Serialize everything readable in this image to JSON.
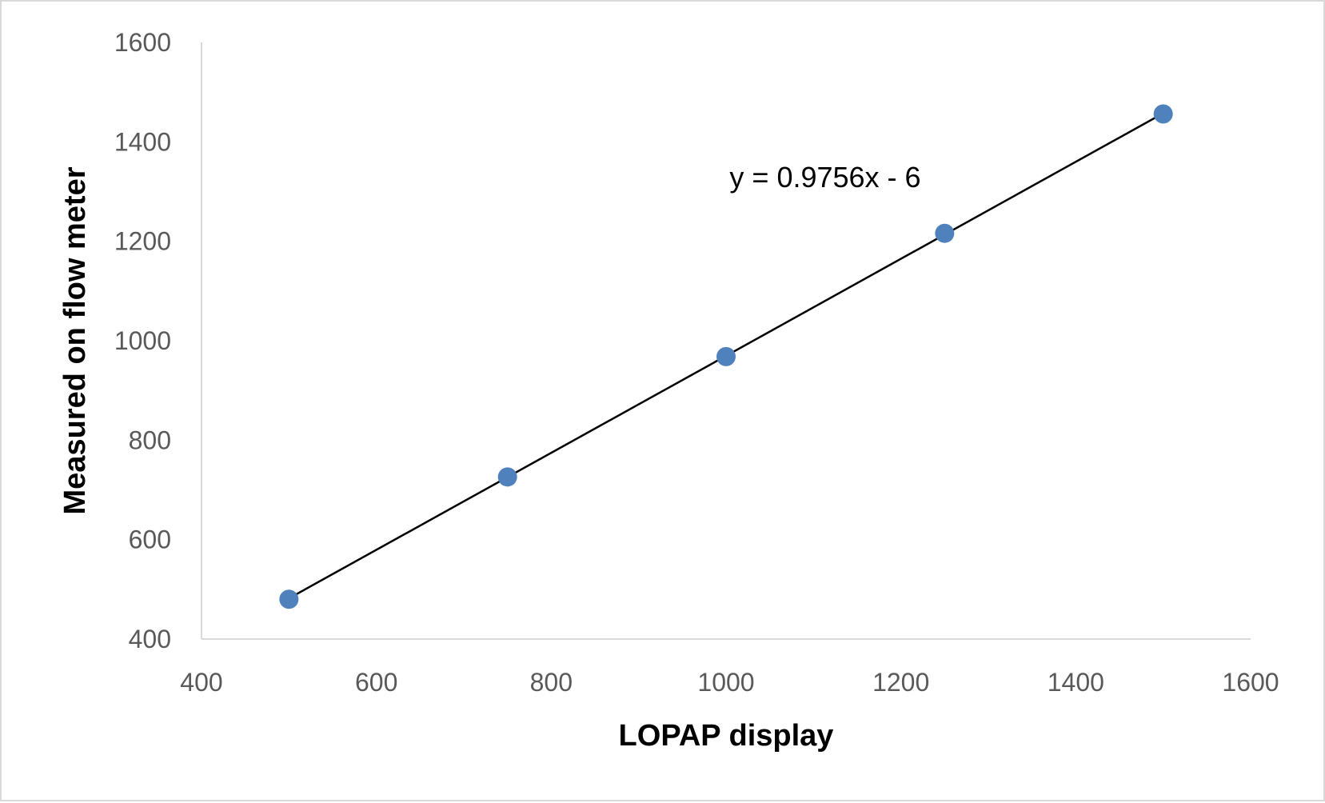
{
  "chart_data": {
    "type": "scatter",
    "xlabel": "LOPAP display",
    "ylabel": "Measured on flow meter",
    "xlim": [
      400,
      1600
    ],
    "ylim": [
      400,
      1600
    ],
    "x_ticks": [
      400,
      600,
      800,
      1000,
      1200,
      1400,
      1600
    ],
    "y_ticks": [
      400,
      600,
      800,
      1000,
      1200,
      1400,
      1600
    ],
    "x_tick_labels": [
      "400",
      "600",
      "800",
      "1000",
      "1200",
      "1400",
      "1600"
    ],
    "y_tick_labels": [
      "400",
      "600",
      "800",
      "1000",
      "1200",
      "1400",
      "1600"
    ],
    "grid": false,
    "legend": "none",
    "series": [
      {
        "x": [
          500,
          750,
          1000,
          1250,
          1500
        ],
        "y": [
          480,
          726,
          968,
          1216,
          1456
        ],
        "color": "#4f81bd"
      }
    ],
    "trendline": {
      "slope": 0.9756,
      "intercept": -6,
      "x_range": [
        500,
        1500
      ],
      "color": "#000000"
    },
    "annotations": [
      {
        "text": "y = 0.9756x - 6"
      }
    ]
  }
}
